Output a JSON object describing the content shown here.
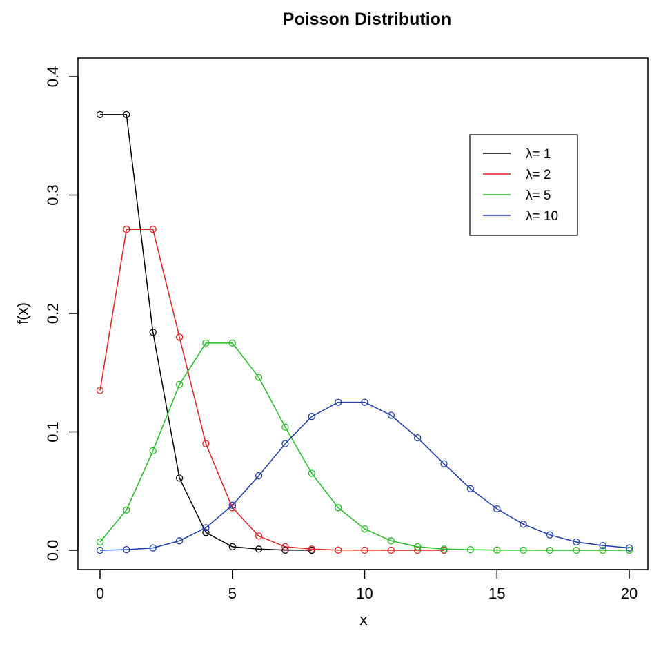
{
  "chart_data": {
    "type": "line",
    "title": "Poisson Distribution",
    "xlabel": "x",
    "ylabel": "f(x)",
    "xlim": [
      0,
      20
    ],
    "ylim": [
      0,
      0.4
    ],
    "x_ticks": [
      "0",
      "5",
      "10",
      "15",
      "20"
    ],
    "y_ticks": [
      "0.0",
      "0.1",
      "0.2",
      "0.3",
      "0.4"
    ],
    "grid": false,
    "legend_position": "top-right",
    "markers": "open circle",
    "series": [
      {
        "name": "λ= 1",
        "color": "#000000",
        "x": [
          0,
          1,
          2,
          3,
          4,
          5,
          6,
          7,
          8
        ],
        "y": [
          0.368,
          0.368,
          0.184,
          0.061,
          0.015,
          0.003,
          0.001,
          0.0001,
          0.0
        ]
      },
      {
        "name": "λ= 2",
        "color": "#df2020",
        "x": [
          0,
          1,
          2,
          3,
          4,
          5,
          6,
          7,
          8,
          9,
          10,
          11,
          12,
          13
        ],
        "y": [
          0.135,
          0.271,
          0.271,
          0.18,
          0.09,
          0.036,
          0.012,
          0.003,
          0.001,
          0.0002,
          4e-05,
          0.0,
          0.0,
          0.0
        ]
      },
      {
        "name": "λ= 5",
        "color": "#22bb22",
        "x": [
          0,
          1,
          2,
          3,
          4,
          5,
          6,
          7,
          8,
          9,
          10,
          11,
          12,
          13,
          14,
          15,
          16,
          17,
          18,
          19,
          20
        ],
        "y": [
          0.007,
          0.034,
          0.084,
          0.14,
          0.175,
          0.175,
          0.146,
          0.104,
          0.065,
          0.036,
          0.018,
          0.008,
          0.003,
          0.001,
          0.0005,
          0.0002,
          5e-05,
          0.0,
          0.0,
          0.0,
          0.0
        ]
      },
      {
        "name": "λ= 10",
        "color": "#1a3aa8",
        "x": [
          0,
          1,
          2,
          3,
          4,
          5,
          6,
          7,
          8,
          9,
          10,
          11,
          12,
          13,
          14,
          15,
          16,
          17,
          18,
          19,
          20
        ],
        "y": [
          0.0,
          0.0005,
          0.002,
          0.008,
          0.019,
          0.038,
          0.063,
          0.09,
          0.113,
          0.125,
          0.125,
          0.114,
          0.095,
          0.073,
          0.052,
          0.035,
          0.022,
          0.013,
          0.007,
          0.004,
          0.002
        ]
      }
    ]
  }
}
